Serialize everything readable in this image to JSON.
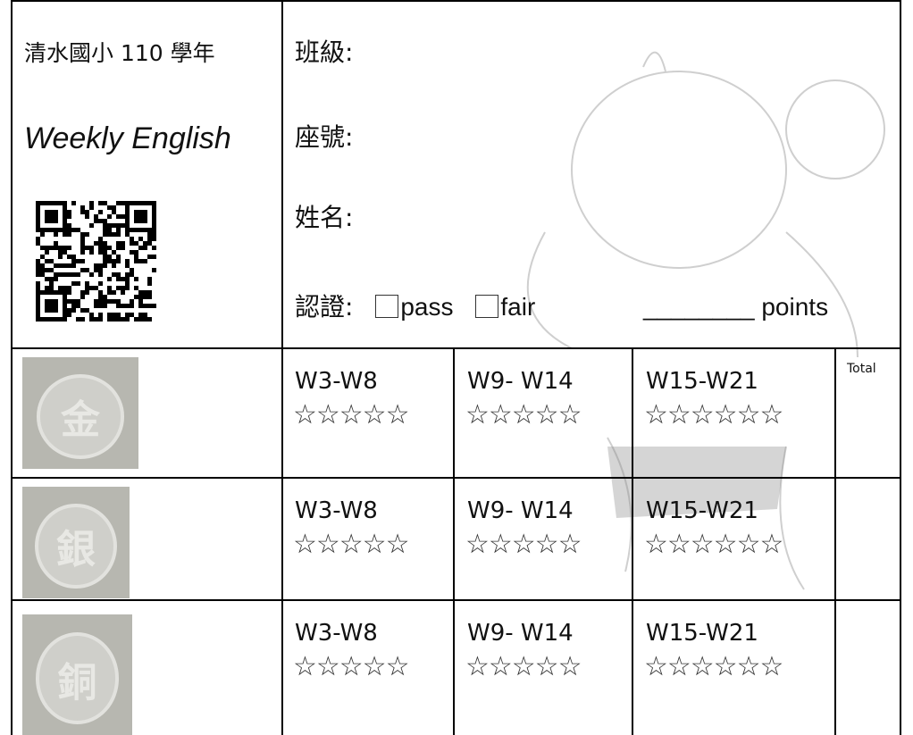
{
  "header": {
    "school": "清水國小 110 學年",
    "subject": "Weekly English",
    "fields": [
      "班級:",
      "座號:",
      "姓名:"
    ],
    "certification": {
      "label": "認證:",
      "options": [
        "pass",
        "fair"
      ],
      "blank": "________",
      "unit": "points"
    }
  },
  "table": {
    "rows": [
      {
        "medal": "金",
        "cells": [
          {
            "week": "W3-W8",
            "stars": "☆☆☆☆☆"
          },
          {
            "week": "W9- W14",
            "stars": "☆☆☆☆☆"
          },
          {
            "week": "W15-W21",
            "stars": "☆☆☆☆☆☆"
          }
        ],
        "total": "Total"
      },
      {
        "medal": "銀",
        "cells": [
          {
            "week": "W3-W8",
            "stars": "☆☆☆☆☆"
          },
          {
            "week": "W9- W14",
            "stars": "☆☆☆☆☆"
          },
          {
            "week": "W15-W21",
            "stars": "☆☆☆☆☆☆"
          }
        ]
      },
      {
        "medal": "銅",
        "cells": [
          {
            "week": "W3-W8",
            "stars": "☆☆☆☆☆"
          },
          {
            "week": "W9- W14",
            "stars": "☆☆☆☆☆"
          },
          {
            "week": "W15-W21",
            "stars": "☆☆☆☆☆☆"
          }
        ]
      }
    ]
  }
}
